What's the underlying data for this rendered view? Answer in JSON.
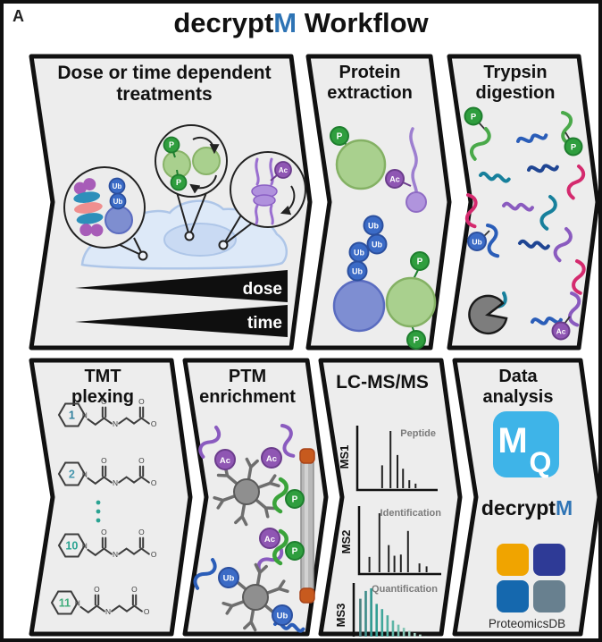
{
  "figure_label": "A",
  "title": {
    "black1": "decrypt",
    "blue": "M",
    "black2": " Workflow"
  },
  "badges": {
    "phospho": "P",
    "ubiquitin": "Ub",
    "acetyl": "Ac"
  },
  "colors": {
    "phospho": "#2f9e3e",
    "ubiquitin": "#3b6bc6",
    "acetyl": "#8f56b3",
    "accent_blue": "#2e74b5",
    "panel_fill": "#ededed",
    "mq_blue": "#3eb4e8",
    "pdb_tl": "#f0a400",
    "pdb_tr": "#2e3a96",
    "pdb_bl": "#1568ae",
    "pdb_br": "#68808f"
  },
  "panels": {
    "treatments": {
      "title1": "Dose or time dependent",
      "title2": "treatments",
      "wedges": [
        "dose",
        "time"
      ]
    },
    "extraction": {
      "title1": "Protein",
      "title2": "extraction"
    },
    "digestion": {
      "title1": "Trypsin",
      "title2": "digestion"
    },
    "tmt": {
      "title1": "TMT",
      "title2": "plexing",
      "atom_n": "N",
      "atom_o": "O",
      "structures": [
        {
          "label": "1",
          "color": "#2f7f9d"
        },
        {
          "label": "2",
          "color": "#4696ad"
        },
        {
          "label": "10",
          "color": "#2aa392"
        },
        {
          "label": "11",
          "color": "#41ad7c"
        }
      ]
    },
    "ptm": {
      "title1": "PTM",
      "title2": "enrichment"
    },
    "lcmsms": {
      "title": "LC-MS/MS",
      "spectra": [
        {
          "label": "MS1",
          "caption": "Peptide",
          "peaks": [
            {
              "x": 0.28,
              "v": 40
            },
            {
              "x": 0.4,
              "v": 100
            },
            {
              "x": 0.5,
              "v": 58
            },
            {
              "x": 0.58,
              "v": 34
            },
            {
              "x": 0.67,
              "v": 14
            },
            {
              "x": 0.76,
              "v": 8
            }
          ]
        },
        {
          "label": "MS2",
          "caption": "Identification",
          "peaks": [
            {
              "x": 0.07,
              "v": 26
            },
            {
              "x": 0.21,
              "v": 100
            },
            {
              "x": 0.34,
              "v": 46
            },
            {
              "x": 0.42,
              "v": 28
            },
            {
              "x": 0.51,
              "v": 30
            },
            {
              "x": 0.61,
              "v": 70
            },
            {
              "x": 0.77,
              "v": 15
            },
            {
              "x": 0.87,
              "v": 10
            }
          ]
        },
        {
          "label": "MS3",
          "caption": "Quantification",
          "peaks": [
            {
              "v": 80
            },
            {
              "v": 95
            },
            {
              "v": 100
            },
            {
              "v": 70
            },
            {
              "v": 60
            },
            {
              "v": 48
            },
            {
              "v": 38
            },
            {
              "v": 30
            },
            {
              "v": 24
            },
            {
              "v": 18
            },
            {
              "v": 14
            },
            {
              "v": 11
            },
            {
              "v": 8
            },
            {
              "v": 6
            }
          ],
          "bar_colors": [
            "#48817f",
            "#3c8c88",
            "#2f9790",
            "#339e94",
            "#3fa69a",
            "#4dae9f",
            "#5db5a6",
            "#6fbdad",
            "#81c4b4",
            "#93ccbc",
            "#a5d3c4",
            "#b6dbcc",
            "#c6e2d4",
            "#d5e9dc"
          ]
        }
      ]
    },
    "analysis": {
      "title1": "Data",
      "title2": "analysis",
      "mq": {
        "m": "M",
        "q": "Q"
      },
      "decryptm": {
        "black": "decrypt",
        "blue": "M"
      },
      "pdb_label": "ProteomicsDB"
    }
  }
}
